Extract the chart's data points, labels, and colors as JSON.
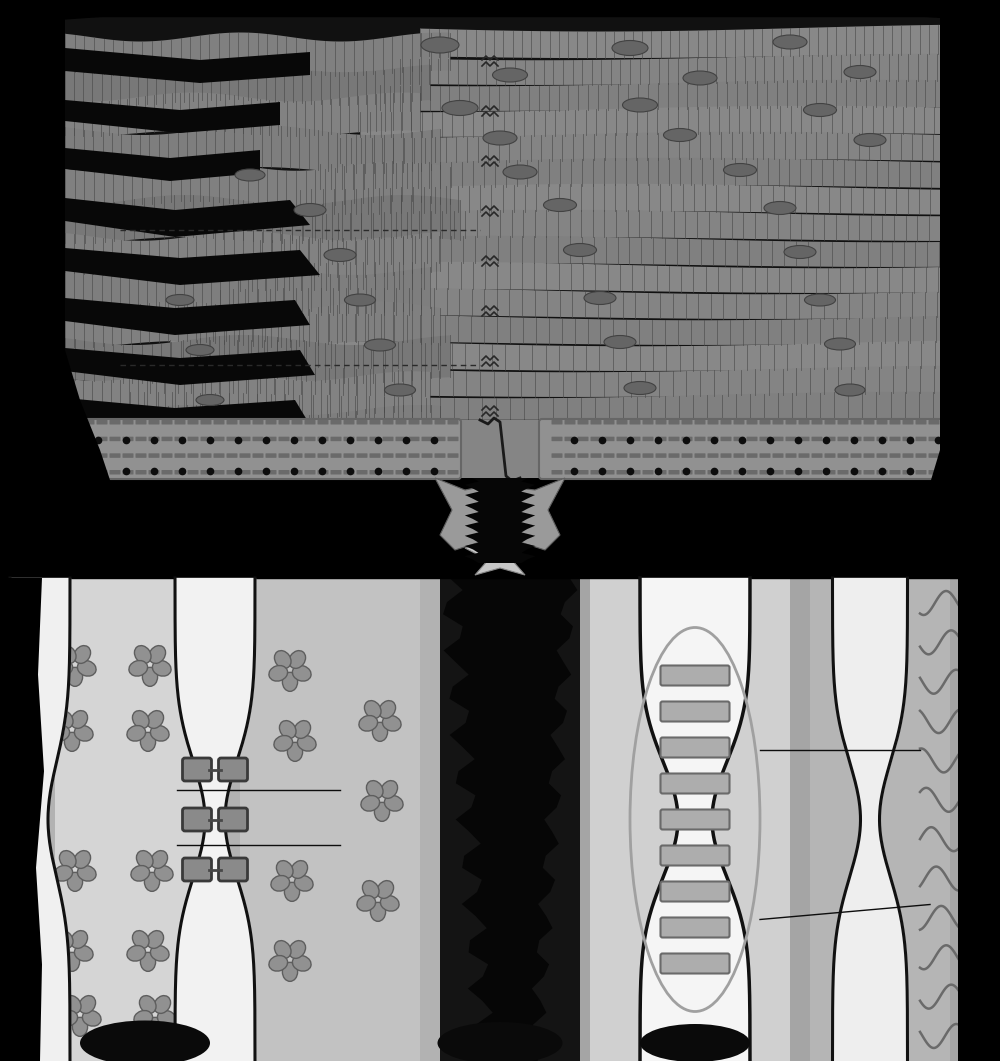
{
  "bg": "#000000",
  "fiber_light": "#909090",
  "fiber_mid": "#787878",
  "fiber_dark": "#606060",
  "stripe_color": "#555555",
  "nucleus_fill": "#686868",
  "nucleus_edge": "#404040",
  "mid_band_fill": "#8a8a8a",
  "mid_cell_fill": "#949494",
  "mid_dash_fill": "#696969",
  "mid_dot_color": "#111111",
  "bot_left_bg": "#b0b0b0",
  "bot_left_light": "#d8d8d8",
  "bot_left_mid": "#c4c4c4",
  "bot_center_bg": "#080808",
  "bot_right_bg": "#a8a8a8",
  "bot_right_light": "#d0d0d0",
  "bot_right_mid": "#b8b8b8",
  "membrane_color": "#111111",
  "flower_fill": "#909090",
  "flower_edge": "#606060",
  "gj_rect_fill": "#b0b0b0",
  "gj_rect_edge": "#707070",
  "oval_color": "#a0a0a0",
  "wavy_color": "#787878",
  "connector_light": "#cccccc",
  "connector_dark": "#383838",
  "ann_line": "#101010",
  "top_tissue_fill": "#828282",
  "intercalated_zigzag": "#2a2a2a",
  "dashed_line": "#2a2a2a"
}
